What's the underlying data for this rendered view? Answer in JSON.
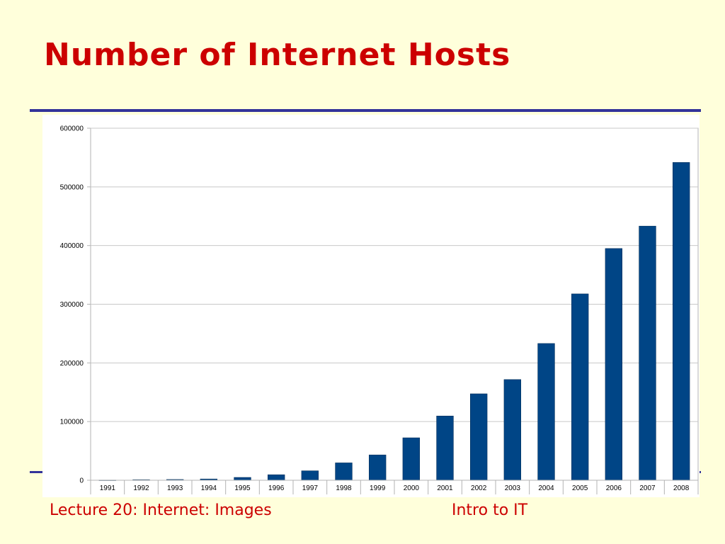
{
  "slide": {
    "title": "Number of Internet Hosts",
    "footer_left": "Lecture 20: Internet: Images",
    "footer_right": "Intro to IT",
    "title_color": "#cc0000",
    "rule_color": "#33339a"
  },
  "chart_data": {
    "type": "bar",
    "title": "",
    "xlabel": "",
    "ylabel": "",
    "categories": [
      "1991",
      "1992",
      "1993",
      "1994",
      "1995",
      "1996",
      "1997",
      "1998",
      "1999",
      "2000",
      "2001",
      "2002",
      "2003",
      "2004",
      "2005",
      "2006",
      "2007",
      "2008"
    ],
    "values": [
      376,
      992,
      1313,
      2217,
      4852,
      9472,
      16146,
      29670,
      43230,
      72398,
      109574,
      147345,
      171638,
      233101,
      317646,
      394991,
      433193,
      541677
    ],
    "ylim": [
      0,
      600000
    ],
    "yticks": [
      0,
      100000,
      200000,
      300000,
      400000,
      500000,
      600000
    ],
    "grid": true,
    "legend": "none",
    "bar_color": "#004586"
  }
}
